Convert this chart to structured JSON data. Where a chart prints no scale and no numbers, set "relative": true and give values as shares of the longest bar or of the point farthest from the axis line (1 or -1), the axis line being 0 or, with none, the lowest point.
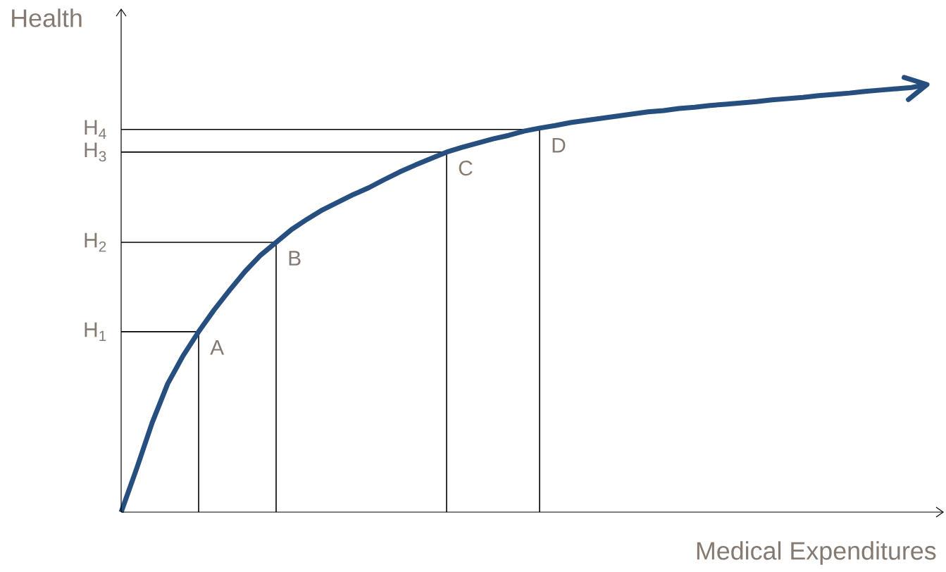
{
  "chart_data": {
    "type": "line",
    "relative": true,
    "xlabel": "Medical Expenditures",
    "ylabel": "Health",
    "categories": [
      null,
      null,
      null,
      null,
      null,
      null,
      null,
      null,
      null,
      null,
      null,
      null,
      null,
      null,
      null,
      null,
      null,
      null,
      null,
      null,
      null,
      null,
      null,
      null,
      null,
      null,
      null,
      null,
      null,
      null,
      null,
      null,
      null,
      null,
      null,
      null,
      null,
      null,
      null,
      null,
      null,
      null,
      null,
      null,
      null,
      null,
      null,
      null,
      null,
      null,
      null,
      null,
      null
    ],
    "series": [
      {
        "color": "#264f80",
        "values": [
          0,
          0.102,
          0.209,
          0.3,
          0.366,
          0.422,
          0.473,
          0.519,
          0.563,
          0.601,
          0.631,
          0.661,
          0.685,
          0.707,
          0.725,
          0.743,
          0.759,
          0.778,
          0.796,
          0.812,
          0.827,
          0.842,
          0.853,
          0.863,
          0.873,
          0.881,
          0.891,
          0.898,
          0.904,
          0.911,
          0.916,
          0.921,
          0.926,
          0.931,
          0.936,
          0.939,
          0.944,
          0.947,
          0.951,
          0.954,
          0.957,
          0.96,
          0.964,
          0.967,
          0.97,
          0.974,
          0.977,
          0.98,
          0.984,
          0.987,
          0.99,
          0.993,
          1
        ]
      }
    ],
    "ref_lines": [
      {
        "axis": "y",
        "value": 0.422,
        "label": "H$_{1}$",
        "color": "#000000"
      },
      {
        "axis": "y",
        "value": 0.631,
        "label": "H$_{2}$",
        "color": "#000000"
      },
      {
        "axis": "y",
        "value": 0.842,
        "label": "H$_{3}$",
        "color": "#000000"
      },
      {
        "axis": "y",
        "value": 0.895,
        "label": "H$_{4}$",
        "color": "#000000"
      }
    ],
    "annotations": [
      "A",
      "B",
      "C",
      "D"
    ]
  }
}
